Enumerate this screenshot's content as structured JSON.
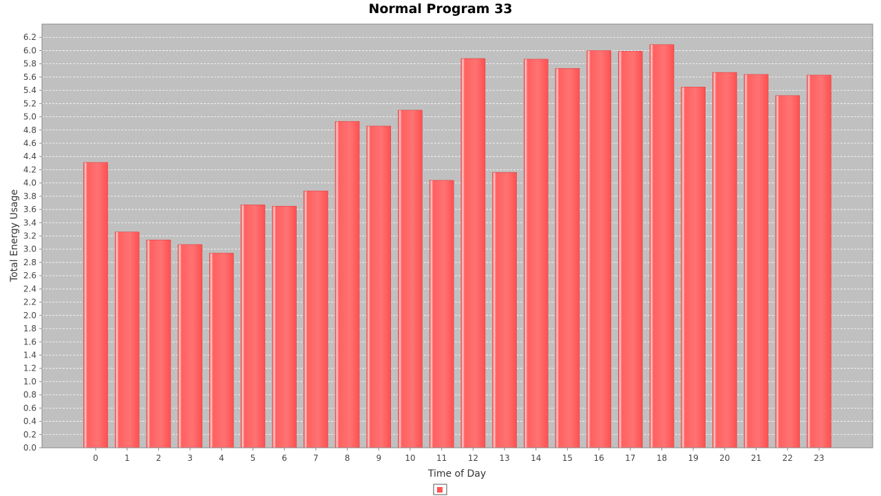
{
  "chart_data": {
    "type": "bar",
    "title": "Normal Program 33",
    "xlabel": "Time of Day",
    "ylabel": "Total Energy Usage",
    "categories": [
      "0",
      "1",
      "2",
      "3",
      "4",
      "5",
      "6",
      "7",
      "8",
      "9",
      "10",
      "11",
      "12",
      "13",
      "14",
      "15",
      "16",
      "17",
      "18",
      "19",
      "20",
      "21",
      "22",
      "23"
    ],
    "series": [
      {
        "values": [
          4.31,
          3.26,
          3.14,
          3.07,
          2.94,
          3.67,
          3.65,
          3.88,
          4.93,
          4.86,
          5.1,
          4.04,
          5.88,
          4.16,
          5.87,
          5.73,
          6.0,
          5.99,
          6.09,
          5.45,
          5.67,
          5.64,
          5.32,
          5.63
        ],
        "color": "#ff5555"
      }
    ],
    "ylim": [
      0,
      6.4
    ],
    "yticks": [
      "0.0",
      "0.2",
      "0.4",
      "0.6",
      "0.8",
      "1.0",
      "1.2",
      "1.4",
      "1.6",
      "1.8",
      "2.0",
      "2.2",
      "2.4",
      "2.6",
      "2.8",
      "3.0",
      "3.2",
      "3.4",
      "3.6",
      "3.8",
      "4.0",
      "4.2",
      "4.4",
      "4.6",
      "4.8",
      "5.0",
      "5.2",
      "5.4",
      "5.6",
      "5.8",
      "6.0",
      "6.2"
    ],
    "grid": true,
    "legend": "bottom-center",
    "plot_background": "#c0c0c0"
  }
}
